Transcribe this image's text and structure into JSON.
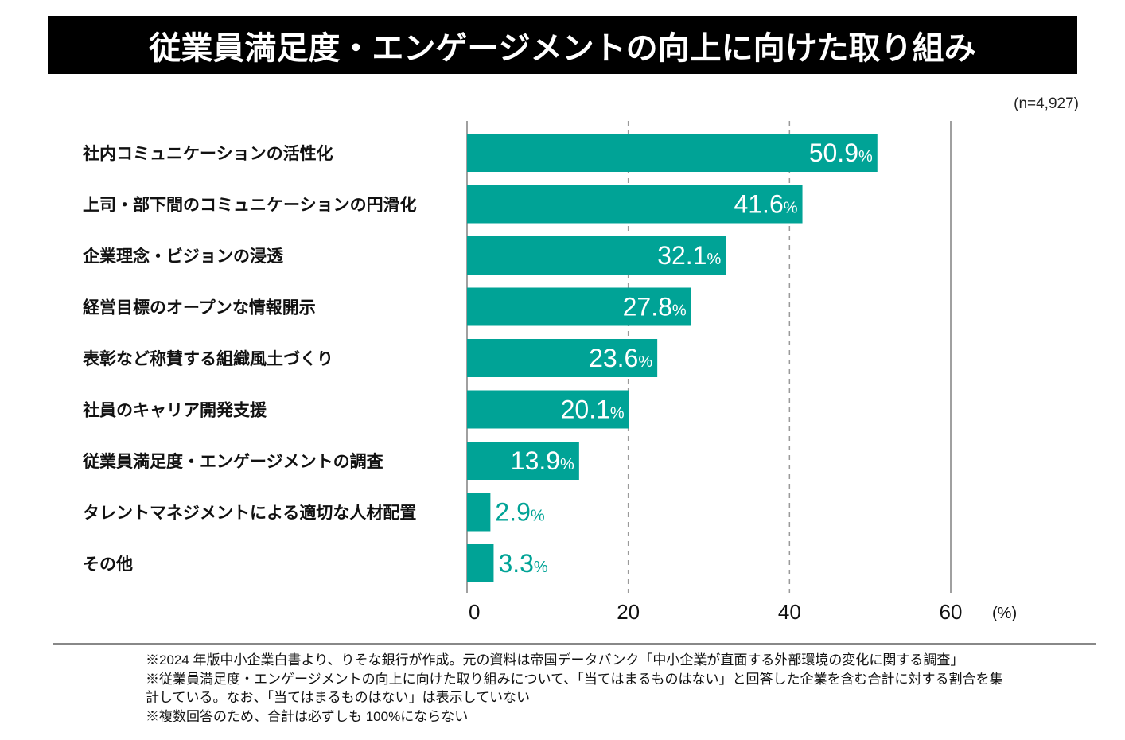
{
  "header": {
    "title": "従業員満足度・エンゲージメントの向上に向けた取り組み",
    "sample_size": "(n=4,927)"
  },
  "chart_data": {
    "type": "bar",
    "orientation": "horizontal",
    "title": "従業員満足度・エンゲージメントの向上に向けた取り組み",
    "categories": [
      "社内コミュニケーションの活性化",
      "上司・部下間のコミュニケーションの円滑化",
      "企業理念・ビジョンの浸透",
      "経営目標のオープンな情報開示",
      "表彰など称賛する組織風土づくり",
      "社員のキャリア開発支援",
      "従業員満足度・エンゲージメントの調査",
      "タレントマネジメントによる適切な人材配置",
      "その他"
    ],
    "values": [
      50.9,
      41.6,
      32.1,
      27.8,
      23.6,
      20.1,
      13.9,
      2.9,
      3.3
    ],
    "value_labels": [
      "50.9",
      "41.6",
      "32.1",
      "27.8",
      "23.6",
      "20.1",
      "13.9",
      "2.9",
      "3.3"
    ],
    "value_suffix": "%",
    "xlabel": "",
    "xunit": "(%)",
    "ylabel": "",
    "xlim": [
      0,
      60
    ],
    "xticks": [
      0,
      20,
      40,
      60
    ],
    "xtick_labels": [
      "0",
      "20",
      "40",
      "60"
    ],
    "grid": "vertical dashed at 20 and 40",
    "bar_color": "#00A396",
    "label_inside_color": "#ffffff",
    "label_outside_color": "#00A396",
    "legend": "none"
  },
  "footer": {
    "notes": [
      "※2024 年版中小企業白書より、りそな銀行が作成。元の資料は帝国データバンク「中小企業が直面する外部環境の変化に関する調査」",
      "※従業員満足度・エンゲージメントの向上に向けた取り組みについて、「当てはまるものはない」と回答した企業を含む合計に対する割合を集",
      "計している。なお、「当てはまるものはない」は表示していない",
      "※複数回答のため、合計は必ずしも 100%にならない"
    ]
  }
}
